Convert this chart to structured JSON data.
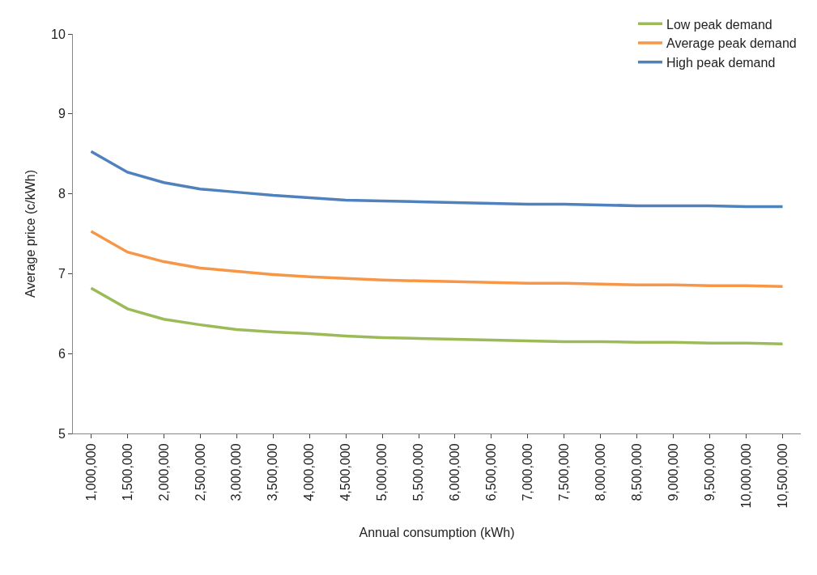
{
  "chart_data": {
    "type": "line",
    "xlabel": "Annual consumption (kWh)",
    "ylabel": "Average price (c/kWh)",
    "categories": [
      "1,000,000",
      "1,500,000",
      "2,000,000",
      "2,500,000",
      "3,000,000",
      "3,500,000",
      "4,000,000",
      "4,500,000",
      "5,000,000",
      "5,500,000",
      "6,000,000",
      "6,500,000",
      "7,000,000",
      "7,500,000",
      "8,000,000",
      "8,500,000",
      "9,000,000",
      "9,500,000",
      "10,000,000",
      "10,500,000"
    ],
    "series": [
      {
        "name": "Low peak demand",
        "color": "#9bbb59",
        "values": [
          6.82,
          6.56,
          6.43,
          6.36,
          6.3,
          6.27,
          6.25,
          6.22,
          6.2,
          6.19,
          6.18,
          6.17,
          6.16,
          6.15,
          6.15,
          6.14,
          6.14,
          6.13,
          6.13,
          6.12
        ]
      },
      {
        "name": "Average peak demand",
        "color": "#f79646",
        "values": [
          7.53,
          7.27,
          7.15,
          7.07,
          7.03,
          6.99,
          6.96,
          6.94,
          6.92,
          6.91,
          6.9,
          6.89,
          6.88,
          6.88,
          6.87,
          6.86,
          6.86,
          6.85,
          6.85,
          6.84
        ]
      },
      {
        "name": "High peak demand",
        "color": "#4f81bd",
        "values": [
          8.53,
          8.27,
          8.14,
          8.06,
          8.02,
          7.98,
          7.95,
          7.92,
          7.91,
          7.9,
          7.89,
          7.88,
          7.87,
          7.87,
          7.86,
          7.85,
          7.85,
          7.85,
          7.84,
          7.84
        ]
      }
    ],
    "ylim": [
      5,
      10
    ],
    "yticks": [
      5,
      6,
      7,
      8,
      9,
      10
    ],
    "legend": "top right",
    "marker": "none",
    "line_style": "solid"
  }
}
